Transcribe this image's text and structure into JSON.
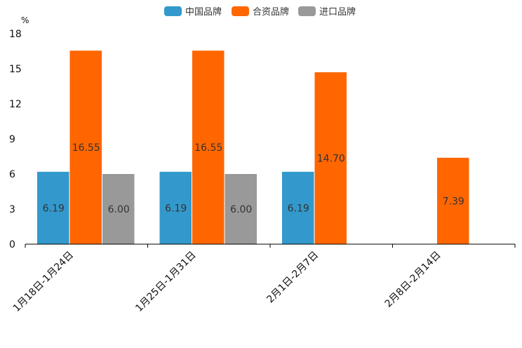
{
  "chart_data": {
    "type": "bar",
    "unit": "%",
    "categories": [
      "1月18日-1月24日",
      "1月25日-1月31日",
      "2月1日-2月7日",
      "2月8日-2月14日"
    ],
    "series": [
      {
        "name": "中国品牌",
        "color": "#3399cc",
        "values": [
          6.19,
          6.19,
          6.19,
          null
        ],
        "labels": [
          "6.19",
          "6.19",
          "6.19",
          ""
        ]
      },
      {
        "name": "合资品牌",
        "color": "#ff6600",
        "values": [
          16.55,
          16.55,
          14.7,
          7.39
        ],
        "labels": [
          "16.55",
          "16.55",
          "14.70",
          "7.39"
        ]
      },
      {
        "name": "进口品牌",
        "color": "#999999",
        "values": [
          6.0,
          6.0,
          null,
          null
        ],
        "labels": [
          "6.00",
          "6.00",
          "",
          ""
        ]
      }
    ],
    "y_ticks": [
      "0",
      "3",
      "6",
      "9",
      "12",
      "15",
      "18"
    ],
    "ylim": [
      0,
      18
    ],
    "legend_position": "top-center",
    "grid": false
  }
}
